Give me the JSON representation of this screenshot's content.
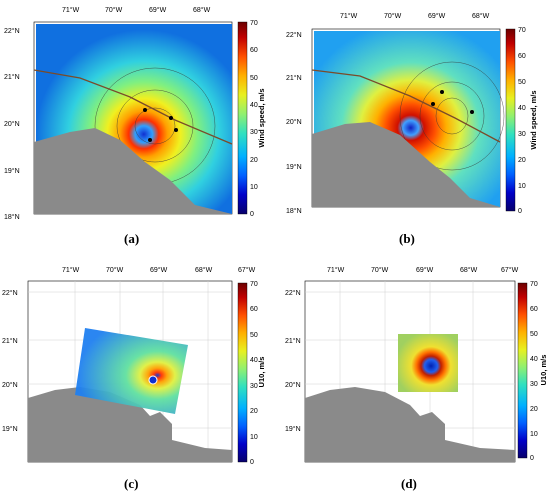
{
  "colors": {
    "land": "#8a8a8a",
    "frame": "#000000",
    "grid": "#cfcfcf",
    "track": "#7a4b2a"
  },
  "colorbar": {
    "ticks": [
      "70",
      "60",
      "50",
      "40",
      "30",
      "20",
      "10",
      "0"
    ],
    "stops": [
      "#08006b",
      "#0000c8",
      "#0060ff",
      "#00b0ff",
      "#30e0c0",
      "#90f070",
      "#e8f020",
      "#ffb000",
      "#ff5000",
      "#c00000",
      "#6b0000"
    ]
  },
  "panels": [
    {
      "id": "a",
      "label": "(a)",
      "lon_ticks": [
        "71°W",
        "70°W",
        "69°W",
        "68°W"
      ],
      "lat_ticks": [
        "22°N",
        "21°N",
        "20°N",
        "19°N",
        "18°N"
      ],
      "cbar_label": "Wind speed, m/s"
    },
    {
      "id": "b",
      "label": "(b)",
      "lon_ticks": [
        "71°W",
        "70°W",
        "69°W",
        "68°W"
      ],
      "lat_ticks": [
        "22°N",
        "21°N",
        "20°N",
        "19°N",
        "18°N"
      ],
      "cbar_label": "Wind speed, m/s"
    },
    {
      "id": "c",
      "label": "(c)",
      "lon_ticks": [
        "71°W",
        "70°W",
        "69°W",
        "68°W",
        "67°W"
      ],
      "lat_ticks": [
        "22°N",
        "21°N",
        "20°N",
        "19°N"
      ],
      "cbar_label": "U10, m/s"
    },
    {
      "id": "d",
      "label": "(d)",
      "lon_ticks": [
        "71°W",
        "70°W",
        "69°W",
        "68°W",
        "67°W"
      ],
      "lat_ticks": [
        "22°N",
        "21°N",
        "20°N",
        "19°N"
      ],
      "cbar_label": "U10, m/s"
    }
  ]
}
